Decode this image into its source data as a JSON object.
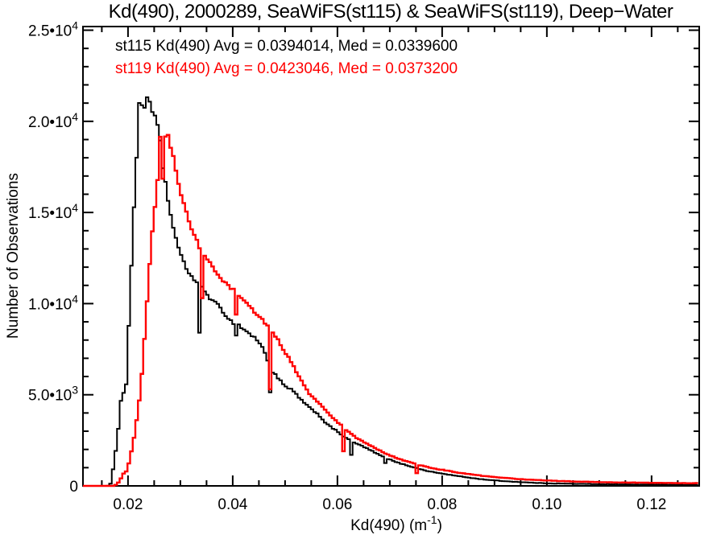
{
  "chart_data": {
    "type": "line",
    "subtype": "step-histogram-outline",
    "title": "Kd(490), 2000289, SeaWiFS(st115) & SeaWiFS(st119), Deep−Water",
    "xlabel": "Kd(490) (m^-1)",
    "ylabel": "Number of Observations",
    "xlim": [
      0.0114,
      0.1291
    ],
    "ylim": [
      0,
      25200
    ],
    "grid": false,
    "legend_position": "top-left-inside",
    "x_major_ticks": [
      0.02,
      0.04,
      0.06,
      0.08,
      0.1,
      0.12
    ],
    "x_major_labels": [
      "0.02",
      "0.04",
      "0.06",
      "0.08",
      "0.10",
      "0.12"
    ],
    "x_minor_step": 0.005,
    "y_major_ticks": [
      0,
      5000,
      10000,
      15000,
      20000,
      25000
    ],
    "y_major_labels": [
      "0",
      "5.0•10^3",
      "1.0•10^4",
      "1.5•10^4",
      "2.0•10^4",
      "2.5•10^4"
    ],
    "y_minor_step": 1000,
    "bin_width": 0.0005,
    "legend": [
      {
        "label": "st115 Kd(490) Avg = 0.0394014, Med = 0.0339600",
        "color": "#000000"
      },
      {
        "label": "st119 Kd(490) Avg = 0.0423046, Med = 0.0373200",
        "color": "#ff0000"
      }
    ],
    "series": [
      {
        "name": "st115",
        "color": "#000000",
        "avg": 0.0394014,
        "med": 0.03396,
        "anchors": [
          [
            0.0114,
            0
          ],
          [
            0.016,
            0
          ],
          [
            0.0166,
            50
          ],
          [
            0.017,
            600
          ],
          [
            0.0174,
            1400
          ],
          [
            0.0178,
            2200
          ],
          [
            0.0182,
            3300
          ],
          [
            0.0186,
            4600
          ],
          [
            0.0189,
            5200
          ],
          [
            0.0193,
            5100
          ],
          [
            0.0197,
            5600
          ],
          [
            0.02,
            7800
          ],
          [
            0.0203,
            9800
          ],
          [
            0.0207,
            12500
          ],
          [
            0.0211,
            15000
          ],
          [
            0.0215,
            17200
          ],
          [
            0.0219,
            19500
          ],
          [
            0.0222,
            21100
          ],
          [
            0.0226,
            20850
          ],
          [
            0.023,
            21000
          ],
          [
            0.0233,
            20650
          ],
          [
            0.0237,
            21450
          ],
          [
            0.024,
            21200
          ],
          [
            0.0245,
            20800
          ],
          [
            0.025,
            20300
          ],
          [
            0.0255,
            19850
          ],
          [
            0.026,
            19300
          ],
          [
            0.0263,
            18600
          ],
          [
            0.0267,
            17100
          ],
          [
            0.0271,
            16650
          ],
          [
            0.0276,
            15800
          ],
          [
            0.0281,
            14900
          ],
          [
            0.0286,
            14300
          ],
          [
            0.0291,
            13650
          ],
          [
            0.0297,
            13000
          ],
          [
            0.0303,
            12450
          ],
          [
            0.031,
            12000
          ],
          [
            0.0317,
            11700
          ],
          [
            0.0324,
            11400
          ],
          [
            0.0331,
            11150
          ],
          [
            0.0338,
            10950
          ],
          [
            0.0346,
            10700
          ],
          [
            0.0354,
            10400
          ],
          [
            0.0362,
            10150
          ],
          [
            0.037,
            9950
          ],
          [
            0.0378,
            9700
          ],
          [
            0.0386,
            9400
          ],
          [
            0.0394,
            9100
          ],
          [
            0.0401,
            8950
          ],
          [
            0.0407,
            8900
          ],
          [
            0.0413,
            8800
          ],
          [
            0.042,
            8600
          ],
          [
            0.0428,
            8450
          ],
          [
            0.0436,
            8250
          ],
          [
            0.0444,
            8100
          ],
          [
            0.0452,
            7800
          ],
          [
            0.0459,
            7450
          ],
          [
            0.0465,
            7100
          ],
          [
            0.047,
            6500
          ],
          [
            0.0476,
            6250
          ],
          [
            0.0482,
            6100
          ],
          [
            0.049,
            5800
          ],
          [
            0.0498,
            5500
          ],
          [
            0.0506,
            5350
          ],
          [
            0.0514,
            5250
          ],
          [
            0.0522,
            5000
          ],
          [
            0.053,
            4750
          ],
          [
            0.0538,
            4500
          ],
          [
            0.0546,
            4300
          ],
          [
            0.0554,
            4150
          ],
          [
            0.0562,
            3950
          ],
          [
            0.057,
            3700
          ],
          [
            0.0578,
            3450
          ],
          [
            0.0586,
            3250
          ],
          [
            0.0594,
            3100
          ],
          [
            0.0602,
            2950
          ],
          [
            0.061,
            2750
          ],
          [
            0.0618,
            2600
          ],
          [
            0.0626,
            2450
          ],
          [
            0.0634,
            2350
          ],
          [
            0.0642,
            2250
          ],
          [
            0.065,
            2150
          ],
          [
            0.066,
            2000
          ],
          [
            0.067,
            1850
          ],
          [
            0.068,
            1700
          ],
          [
            0.069,
            1550
          ],
          [
            0.07,
            1450
          ],
          [
            0.0712,
            1300
          ],
          [
            0.0724,
            1200
          ],
          [
            0.0736,
            1100
          ],
          [
            0.0748,
            1000
          ],
          [
            0.076,
            900
          ],
          [
            0.0775,
            800
          ],
          [
            0.079,
            720
          ],
          [
            0.0805,
            650
          ],
          [
            0.082,
            580
          ],
          [
            0.084,
            500
          ],
          [
            0.086,
            420
          ],
          [
            0.088,
            350
          ],
          [
            0.09,
            300
          ],
          [
            0.093,
            240
          ],
          [
            0.096,
            190
          ],
          [
            0.099,
            150
          ],
          [
            0.102,
            130
          ],
          [
            0.106,
            110
          ],
          [
            0.11,
            95
          ],
          [
            0.115,
            80
          ],
          [
            0.12,
            70
          ],
          [
            0.125,
            60
          ],
          [
            0.1291,
            55
          ]
        ],
        "spikes": [
          [
            0.0335,
            8400
          ],
          [
            0.0405,
            8250
          ],
          [
            0.0473,
            5130
          ],
          [
            0.0628,
            1700
          ],
          [
            0.0691,
            1250
          ]
        ]
      },
      {
        "name": "st119",
        "color": "#ff0000",
        "avg": 0.0423046,
        "med": 0.03732,
        "anchors": [
          [
            0.0114,
            0
          ],
          [
            0.0174,
            0
          ],
          [
            0.0178,
            80
          ],
          [
            0.0182,
            200
          ],
          [
            0.0186,
            380
          ],
          [
            0.019,
            620
          ],
          [
            0.0194,
            750
          ],
          [
            0.0198,
            820
          ],
          [
            0.0202,
            1300
          ],
          [
            0.0206,
            1800
          ],
          [
            0.021,
            2400
          ],
          [
            0.0214,
            3100
          ],
          [
            0.0218,
            3900
          ],
          [
            0.0222,
            4800
          ],
          [
            0.0226,
            6000
          ],
          [
            0.023,
            7300
          ],
          [
            0.0234,
            9200
          ],
          [
            0.0238,
            10800
          ],
          [
            0.0242,
            12300
          ],
          [
            0.0246,
            13700
          ],
          [
            0.025,
            14900
          ],
          [
            0.0254,
            16100
          ],
          [
            0.0258,
            17300
          ],
          [
            0.0262,
            18600
          ],
          [
            0.0266,
            18800
          ],
          [
            0.027,
            19050
          ],
          [
            0.0274,
            19250
          ],
          [
            0.0278,
            19050
          ],
          [
            0.0282,
            18650
          ],
          [
            0.0287,
            18100
          ],
          [
            0.0292,
            17250
          ],
          [
            0.0297,
            16500
          ],
          [
            0.0302,
            15850
          ],
          [
            0.0308,
            15250
          ],
          [
            0.0314,
            14700
          ],
          [
            0.032,
            14200
          ],
          [
            0.0326,
            13750
          ],
          [
            0.0333,
            13300
          ],
          [
            0.034,
            12950
          ],
          [
            0.0348,
            12600
          ],
          [
            0.0356,
            12250
          ],
          [
            0.0364,
            11900
          ],
          [
            0.0372,
            11500
          ],
          [
            0.038,
            11200
          ],
          [
            0.0388,
            11050
          ],
          [
            0.0396,
            10850
          ],
          [
            0.0403,
            10700
          ],
          [
            0.041,
            10400
          ],
          [
            0.0418,
            10200
          ],
          [
            0.0426,
            10000
          ],
          [
            0.0434,
            9800
          ],
          [
            0.0442,
            9550
          ],
          [
            0.045,
            9300
          ],
          [
            0.0458,
            9050
          ],
          [
            0.0466,
            8800
          ],
          [
            0.0472,
            8600
          ],
          [
            0.0478,
            8400
          ],
          [
            0.0486,
            8050
          ],
          [
            0.0494,
            7650
          ],
          [
            0.0502,
            7250
          ],
          [
            0.051,
            6850
          ],
          [
            0.0518,
            6450
          ],
          [
            0.0526,
            6050
          ],
          [
            0.0534,
            5650
          ],
          [
            0.0542,
            5250
          ],
          [
            0.055,
            4950
          ],
          [
            0.0558,
            4700
          ],
          [
            0.0566,
            4500
          ],
          [
            0.0574,
            4250
          ],
          [
            0.0582,
            4000
          ],
          [
            0.059,
            3750
          ],
          [
            0.0598,
            3550
          ],
          [
            0.0606,
            3350
          ],
          [
            0.0613,
            3150
          ],
          [
            0.062,
            2980
          ],
          [
            0.0628,
            2820
          ],
          [
            0.0636,
            2650
          ],
          [
            0.0644,
            2500
          ],
          [
            0.0652,
            2380
          ],
          [
            0.0662,
            2220
          ],
          [
            0.0672,
            2060
          ],
          [
            0.0682,
            1920
          ],
          [
            0.0692,
            1780
          ],
          [
            0.0702,
            1660
          ],
          [
            0.0714,
            1520
          ],
          [
            0.0726,
            1400
          ],
          [
            0.0738,
            1290
          ],
          [
            0.075,
            1190
          ],
          [
            0.0762,
            1100
          ],
          [
            0.0776,
            1000
          ],
          [
            0.079,
            930
          ],
          [
            0.0805,
            860
          ],
          [
            0.082,
            780
          ],
          [
            0.084,
            690
          ],
          [
            0.086,
            610
          ],
          [
            0.088,
            540
          ],
          [
            0.09,
            480
          ],
          [
            0.093,
            410
          ],
          [
            0.096,
            350
          ],
          [
            0.099,
            310
          ],
          [
            0.102,
            270
          ],
          [
            0.106,
            235
          ],
          [
            0.11,
            210
          ],
          [
            0.115,
            185
          ],
          [
            0.12,
            168
          ],
          [
            0.125,
            155
          ],
          [
            0.1291,
            148
          ]
        ],
        "spikes": [
          [
            0.0261,
            19150
          ],
          [
            0.0267,
            16850
          ],
          [
            0.0339,
            10300
          ],
          [
            0.0405,
            9400
          ],
          [
            0.0472,
            5300
          ],
          [
            0.0613,
            1900
          ],
          [
            0.0752,
            700
          ]
        ]
      }
    ],
    "colors": {
      "foreground": "#000000",
      "accent": "#ff0000",
      "background": "#ffffff"
    }
  }
}
